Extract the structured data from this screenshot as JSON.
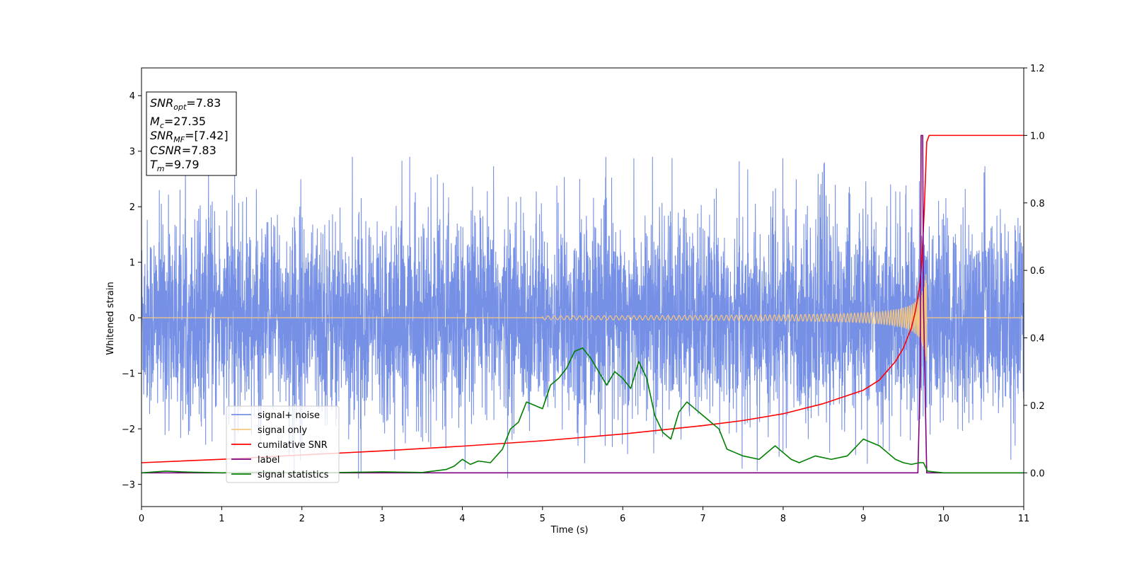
{
  "chart_data": {
    "type": "line",
    "xlabel": "Time (s)",
    "ylabel": "Whitened strain",
    "xlim": [
      0,
      11
    ],
    "ylim_left": [
      -3.4,
      4.5
    ],
    "ylim_right": [
      -0.1,
      1.2
    ],
    "x_ticks": [
      0,
      1,
      2,
      3,
      4,
      5,
      6,
      7,
      8,
      9,
      10,
      11
    ],
    "x_tick_labels": [
      "0",
      "1",
      "2",
      "3",
      "4",
      "5",
      "6",
      "7",
      "8",
      "9",
      "10",
      "11"
    ],
    "y_left_ticks": [
      -3,
      -2,
      -1,
      0,
      1,
      2,
      3,
      4
    ],
    "y_left_tick_labels": [
      "−3",
      "−2",
      "−1",
      "0",
      "1",
      "2",
      "3",
      "4"
    ],
    "y_right_ticks": [
      0.0,
      0.2,
      0.4,
      0.6,
      0.8,
      1.0,
      1.2
    ],
    "y_right_tick_labels": [
      "0.0",
      "0.2",
      "0.4",
      "0.6",
      "0.8",
      "1.0",
      "1.2"
    ],
    "legend_position": "lower-left",
    "annotation": {
      "lines": [
        {
          "var": "SNR",
          "sub": "opt",
          "value": "=7.83"
        },
        {
          "var": "M",
          "sub": "c",
          "value": "=27.35"
        },
        {
          "var": "SNR",
          "sub": "MF",
          "value": "=[7.42]"
        },
        {
          "var": "CSNR",
          "sub": "",
          "value": "=7.83"
        },
        {
          "var": "T",
          "sub": "m",
          "value": "=9.79"
        }
      ]
    },
    "series": [
      {
        "name": "signal+ noise",
        "axis": "left",
        "color": "#7690e6",
        "kind": "noise",
        "typical_amplitude": 1.5,
        "peak_amplitude": 2.9,
        "merger_time": 9.79
      },
      {
        "name": "signal only",
        "axis": "left",
        "color": "#f5c77e",
        "kind": "chirp",
        "start": 5.0,
        "merger_time": 9.79,
        "peak_amplitude": 1.0
      },
      {
        "name": "cumilative SNR",
        "axis": "right",
        "color": "#ff0000",
        "x": [
          0,
          1,
          2,
          3,
          4,
          5,
          6,
          7,
          7.5,
          8,
          8.5,
          9,
          9.2,
          9.4,
          9.5,
          9.6,
          9.65,
          9.7,
          9.73,
          9.76,
          9.79,
          9.82,
          11
        ],
        "y": [
          0.03,
          0.04,
          0.053,
          0.065,
          0.079,
          0.095,
          0.115,
          0.14,
          0.155,
          0.175,
          0.205,
          0.245,
          0.275,
          0.33,
          0.37,
          0.43,
          0.48,
          0.55,
          0.63,
          0.78,
          0.98,
          1.0,
          1.0
        ]
      },
      {
        "name": "label",
        "axis": "right",
        "color": "#800080",
        "x": [
          0,
          9.68,
          9.71,
          9.72,
          9.74,
          9.75,
          9.79,
          9.8,
          11
        ],
        "y": [
          0.0,
          0.0,
          0.3,
          1.0,
          1.0,
          0.5,
          0.0,
          0.0,
          0.0
        ]
      },
      {
        "name": "signal statistics",
        "axis": "right",
        "color": "#008000",
        "x": [
          0,
          0.3,
          0.6,
          1,
          1.5,
          2,
          2.5,
          3,
          3.5,
          3.8,
          3.9,
          4.0,
          4.1,
          4.2,
          4.35,
          4.5,
          4.6,
          4.7,
          4.8,
          4.9,
          5.0,
          5.1,
          5.2,
          5.3,
          5.4,
          5.5,
          5.6,
          5.7,
          5.8,
          5.9,
          6.0,
          6.1,
          6.2,
          6.3,
          6.4,
          6.5,
          6.6,
          6.7,
          6.8,
          6.9,
          7.0,
          7.1,
          7.2,
          7.3,
          7.4,
          7.5,
          7.7,
          7.9,
          8.0,
          8.1,
          8.2,
          8.4,
          8.6,
          8.8,
          9.0,
          9.1,
          9.2,
          9.3,
          9.4,
          9.5,
          9.6,
          9.7,
          9.75,
          9.8,
          10.0,
          10.5,
          11
        ],
        "y": [
          0.0,
          0.005,
          0.002,
          0.0,
          0.002,
          0.0,
          0.001,
          0.003,
          0.001,
          0.01,
          0.02,
          0.04,
          0.025,
          0.035,
          0.03,
          0.07,
          0.13,
          0.15,
          0.21,
          0.2,
          0.19,
          0.26,
          0.28,
          0.31,
          0.36,
          0.37,
          0.34,
          0.3,
          0.26,
          0.3,
          0.28,
          0.25,
          0.33,
          0.28,
          0.17,
          0.12,
          0.1,
          0.18,
          0.21,
          0.19,
          0.17,
          0.15,
          0.13,
          0.07,
          0.06,
          0.05,
          0.04,
          0.08,
          0.06,
          0.04,
          0.03,
          0.05,
          0.04,
          0.05,
          0.1,
          0.09,
          0.08,
          0.06,
          0.04,
          0.03,
          0.025,
          0.03,
          0.03,
          0.005,
          0.0,
          0.0,
          0.0
        ]
      }
    ]
  }
}
